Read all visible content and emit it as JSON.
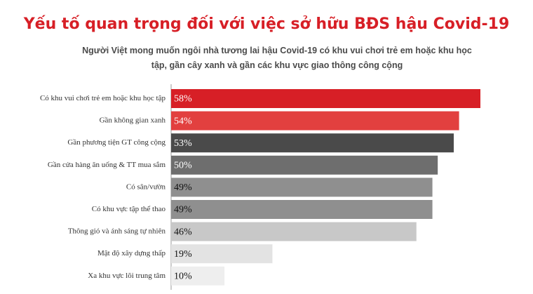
{
  "chart_data": {
    "type": "bar",
    "orientation": "horizontal",
    "title": "Yếu tố quan trọng đối với việc sở hữu BĐS hậu Covid-19",
    "subtitle": "Người Việt mong muốn ngôi nhà tương lai hậu Covid-19 có khu vui chơi trẻ em hoặc khu học tập, gần cây xanh và gần các khu vực giao thông công cộng",
    "categories": [
      "Có khu vui chơi trẻ em hoặc khu học tập",
      "Gần không gian xanh",
      "Gần phương tiện GT công cộng",
      "Gần cửa hàng ăn uống & TT mua sắm",
      "Có sân/vườn",
      "Có khu vực tập thể thao",
      "Thông gió và ánh sáng tự nhiên",
      "Mật độ xây dựng thấp",
      "Xa khu vực lõi trung tâm"
    ],
    "values": [
      58,
      54,
      53,
      50,
      49,
      49,
      46,
      19,
      10
    ],
    "value_labels": [
      "58%",
      "54%",
      "53%",
      "50%",
      "49%",
      "49%",
      "46%",
      "19%",
      "10%"
    ],
    "colors": [
      "#d71f26",
      "#e2403f",
      "#4a4a4a",
      "#6e6e6e",
      "#8f8f8f",
      "#8f8f8f",
      "#c8c8c8",
      "#e3e3e3",
      "#eeeeee"
    ]
  }
}
